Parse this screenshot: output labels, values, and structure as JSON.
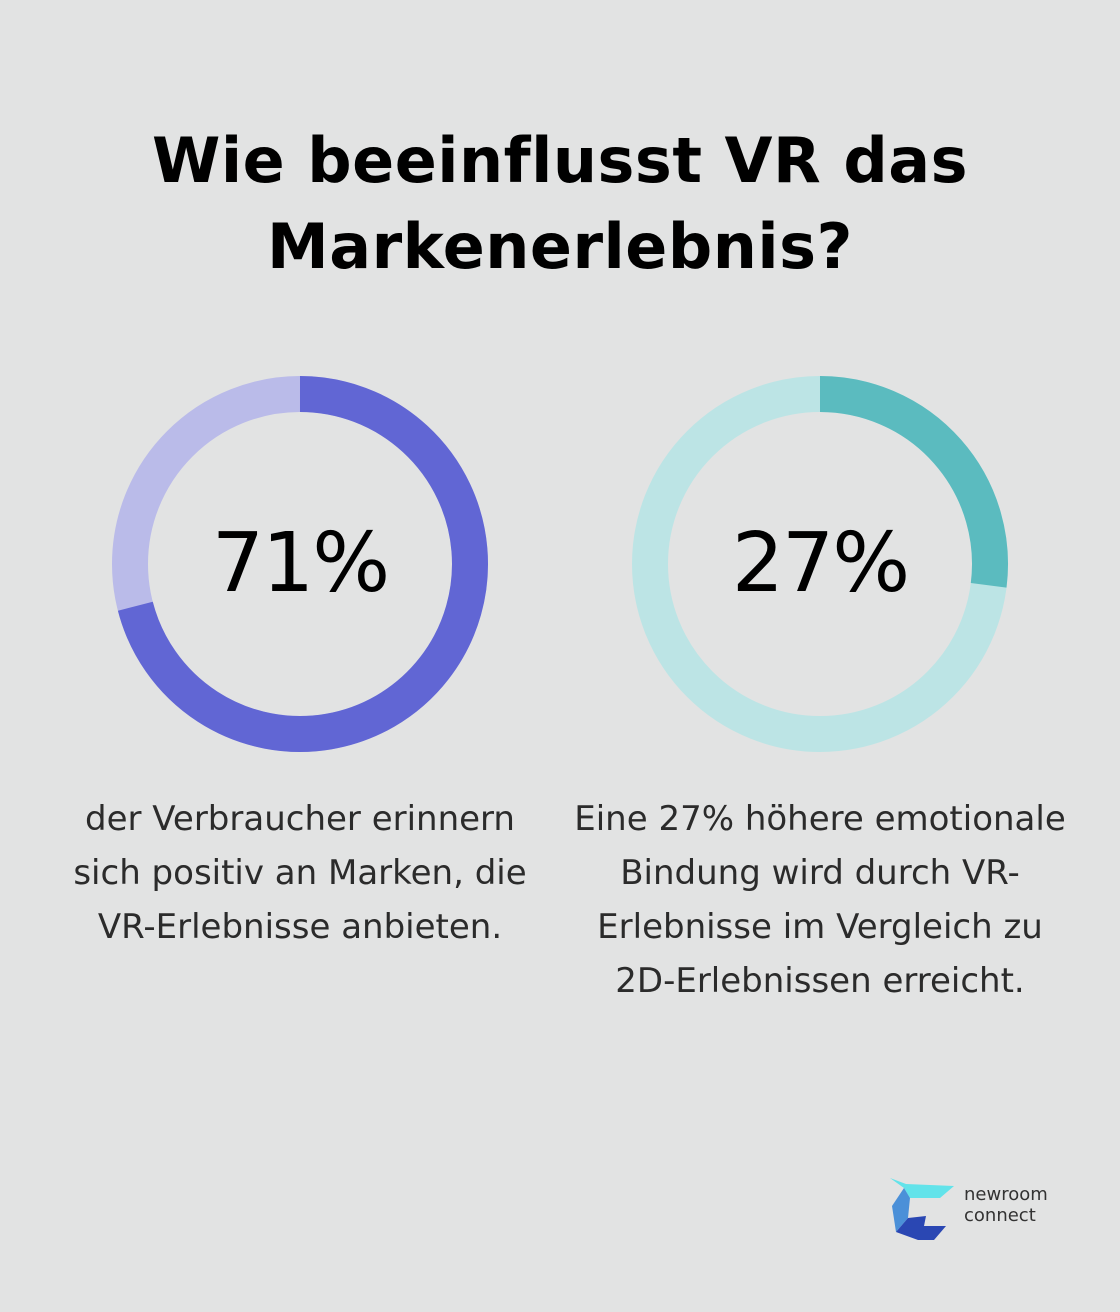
{
  "title": "Wie beeinflusst VR das Markenerlebnis?",
  "chart_data": [
    {
      "type": "pie",
      "variant": "donut",
      "values": [
        71,
        29
      ],
      "label": "71%",
      "caption": "der Verbraucher erinnern sich positiv an Marken, die VR-Erlebnisse anbieten.",
      "colors": {
        "fill": "#6166d4",
        "track": "#babbe9"
      }
    },
    {
      "type": "pie",
      "variant": "donut",
      "values": [
        27,
        73
      ],
      "label": "27%",
      "caption": "Eine 27% höhere emotionale Bindung wird durch VR-Erlebnisse im Vergleich zu 2D-Erlebnissen erreicht.",
      "colors": {
        "fill": "#5bbbbf",
        "track": "#bce4e5"
      }
    }
  ],
  "logo": {
    "line1": "newroom",
    "line2": "connect",
    "colors": {
      "top": "#62e3ea",
      "mid": "#4b90d8",
      "bottom": "#2a47b3"
    }
  }
}
